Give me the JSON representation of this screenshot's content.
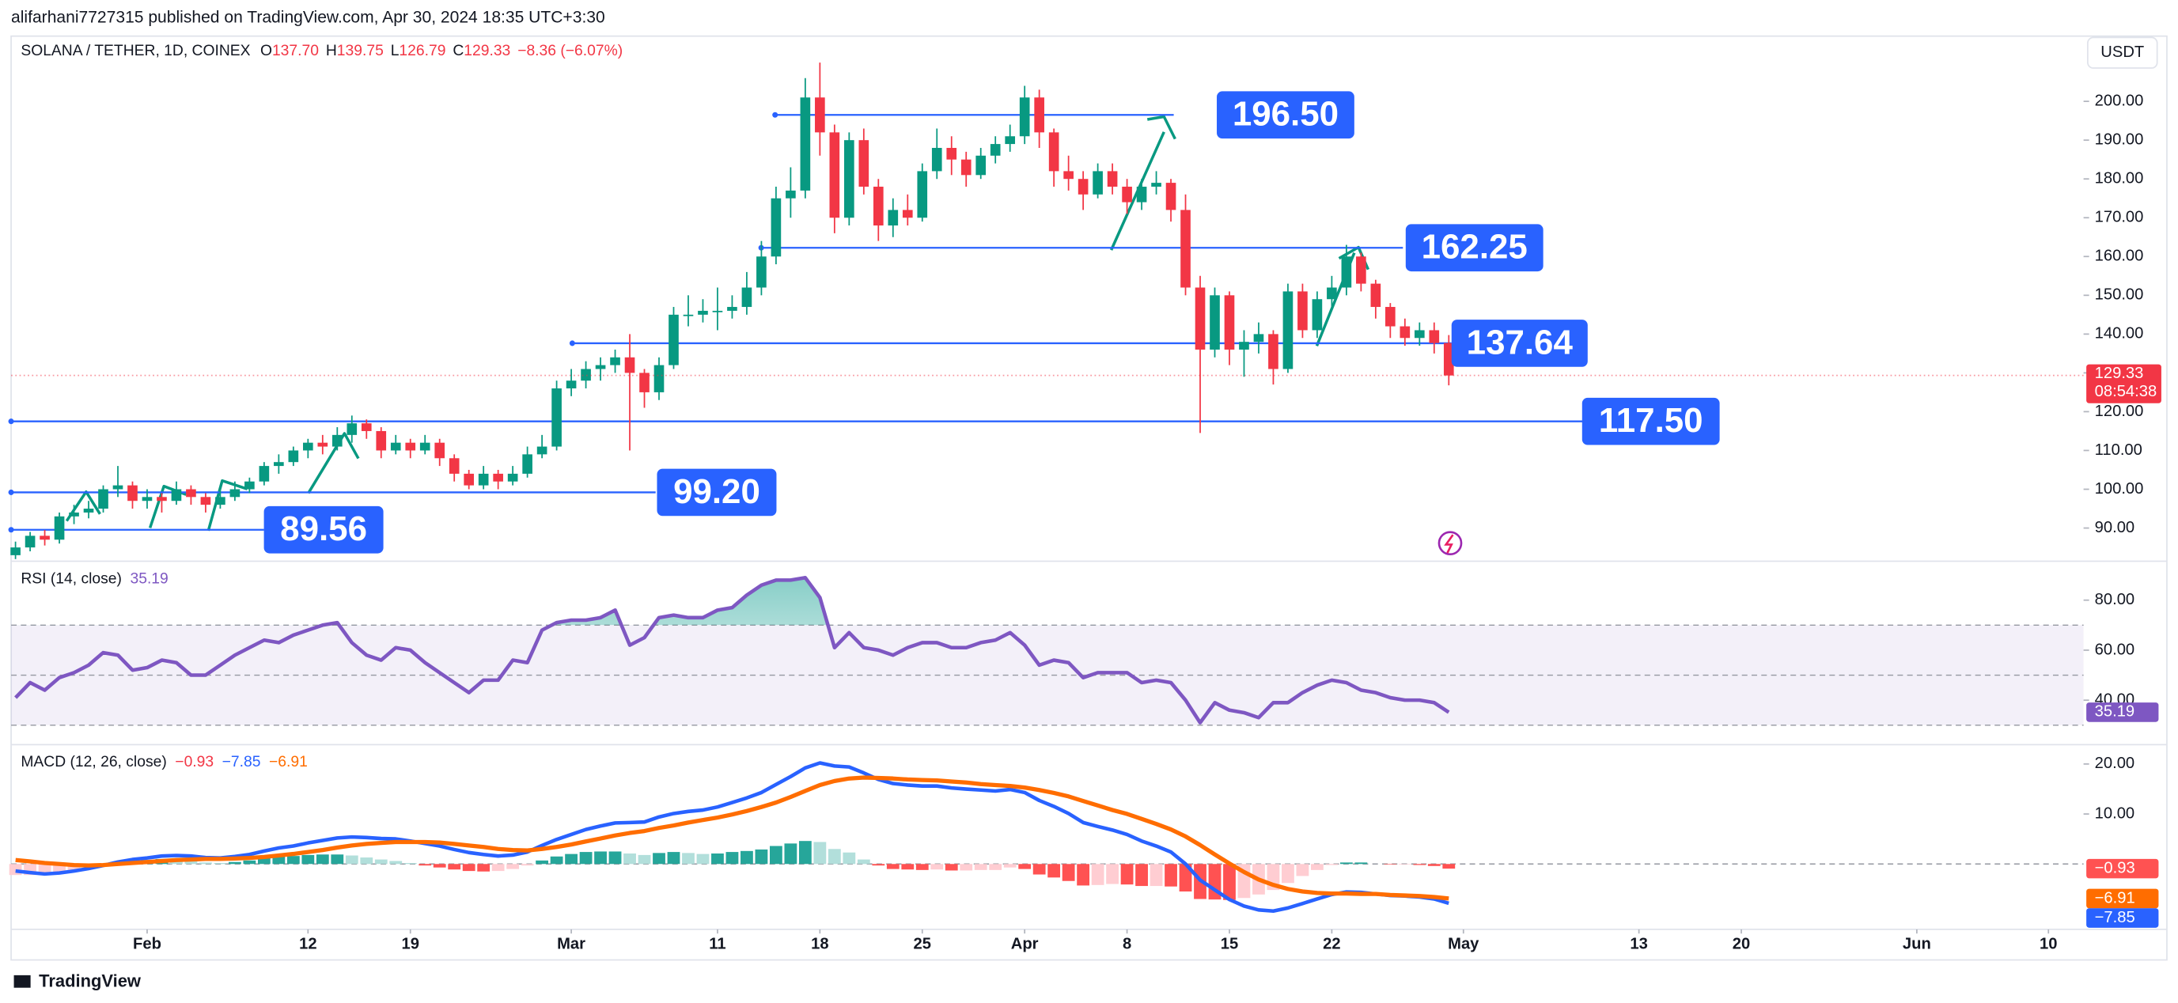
{
  "header": "alifarhani7727315 published on TradingView.com, Apr 30, 2024 18:35 UTC+3:30",
  "footer": "TradingView",
  "xaxis": {
    "xlim": [
      -0.3,
      141.4
    ],
    "xticks": [
      {
        "value": 9,
        "label": "Feb"
      },
      {
        "value": 20,
        "label": "12"
      },
      {
        "value": 27,
        "label": "19"
      },
      {
        "value": 38,
        "label": "Mar"
      },
      {
        "value": 48,
        "label": "11"
      },
      {
        "value": 55,
        "label": "18"
      },
      {
        "value": 62,
        "label": "25"
      },
      {
        "value": 69,
        "label": "Apr"
      },
      {
        "value": 76,
        "label": "8"
      },
      {
        "value": 83,
        "label": "15"
      },
      {
        "value": 90,
        "label": "22"
      },
      {
        "value": 99,
        "label": "May"
      },
      {
        "value": 111,
        "label": "13"
      },
      {
        "value": 118,
        "label": "20"
      },
      {
        "value": 130,
        "label": "Jun"
      },
      {
        "value": 139,
        "label": "10"
      }
    ]
  },
  "chart_data": [
    {
      "type": "candlestick",
      "title": "SOLANA / TETHER, 1D, COINEX",
      "currency": "USDT",
      "legend": [
        {
          "key": "O",
          "value": "137.70"
        },
        {
          "key": "H",
          "value": "139.75"
        },
        {
          "key": "L",
          "value": "126.79"
        },
        {
          "key": "C",
          "value": "129.33"
        }
      ],
      "change": "−8.36 (−6.07%)",
      "countdown": "08:54:38",
      "up_color": "#089981",
      "down_color": "#f23645",
      "ylim": [
        81.8,
        216.1
      ],
      "yticks": [
        {
          "value": 90,
          "label": "90.00"
        },
        {
          "value": 100,
          "label": "100.00"
        },
        {
          "value": 110,
          "label": "110.00"
        },
        {
          "value": 120,
          "label": "120.00"
        },
        {
          "value": 130,
          "label": "130.00"
        },
        {
          "value": 140,
          "label": "140.00"
        },
        {
          "value": 150,
          "label": "150.00"
        },
        {
          "value": 160,
          "label": "160.00"
        },
        {
          "value": 170,
          "label": "170.00"
        },
        {
          "value": 180,
          "label": "180.00"
        },
        {
          "value": 190,
          "label": "190.00"
        },
        {
          "value": 200,
          "label": "200.00"
        }
      ],
      "levels": [
        {
          "value": 196.5,
          "label": "196.50"
        },
        {
          "value": 162.25,
          "label": "162.25"
        },
        {
          "value": 137.64,
          "label": "137.64"
        },
        {
          "value": 117.5,
          "label": "117.50"
        },
        {
          "value": 99.2,
          "label": "99.20"
        },
        {
          "value": 89.56,
          "label": "89.56"
        }
      ],
      "level_color": "#2962ff",
      "candles": [
        [
          83,
          86.5,
          82,
          85
        ],
        [
          85,
          89,
          84,
          88
        ],
        [
          88,
          89.5,
          85.5,
          87
        ],
        [
          87,
          94,
          86,
          93
        ],
        [
          93,
          96,
          91,
          94
        ],
        [
          94,
          97,
          92.5,
          95
        ],
        [
          95,
          101,
          94,
          100
        ],
        [
          100,
          106,
          98,
          101
        ],
        [
          101,
          102,
          95,
          97
        ],
        [
          97,
          100,
          95,
          98
        ],
        [
          98,
          99,
          94,
          97
        ],
        [
          97,
          102,
          96,
          100
        ],
        [
          100,
          101,
          96,
          98
        ],
        [
          98,
          99,
          94,
          96
        ],
        [
          96,
          100,
          95,
          98
        ],
        [
          98,
          102,
          97,
          100
        ],
        [
          100,
          103,
          99,
          102
        ],
        [
          102,
          107,
          101,
          106
        ],
        [
          106,
          109,
          104,
          107
        ],
        [
          107,
          111,
          106,
          110
        ],
        [
          110,
          113,
          108,
          112
        ],
        [
          112,
          114,
          109,
          111
        ],
        [
          111,
          116,
          110,
          114
        ],
        [
          114,
          119,
          112,
          117
        ],
        [
          117,
          118,
          113,
          115
        ],
        [
          115,
          116,
          108,
          110
        ],
        [
          110,
          114,
          109,
          112
        ],
        [
          112,
          113,
          108,
          110
        ],
        [
          110,
          114,
          109,
          112
        ],
        [
          112,
          113,
          106,
          108
        ],
        [
          108,
          109,
          102,
          104
        ],
        [
          104,
          105,
          100,
          101
        ],
        [
          101,
          106,
          100,
          104
        ],
        [
          104,
          105,
          100,
          102
        ],
        [
          102,
          106,
          101,
          104
        ],
        [
          104,
          111,
          103,
          109
        ],
        [
          109,
          114,
          108,
          111
        ],
        [
          111,
          128,
          110,
          126
        ],
        [
          126,
          131,
          124,
          128
        ],
        [
          128,
          133,
          126,
          131
        ],
        [
          131,
          134,
          128,
          132
        ],
        [
          132,
          136,
          130,
          134
        ],
        [
          134,
          140,
          110,
          130
        ],
        [
          130,
          131,
          121,
          125
        ],
        [
          125,
          134,
          123,
          132
        ],
        [
          132,
          147,
          131,
          145
        ],
        [
          145,
          150,
          142,
          145
        ],
        [
          145,
          149,
          143,
          146
        ],
        [
          146,
          152,
          141,
          146
        ],
        [
          146,
          150,
          144,
          147
        ],
        [
          147,
          156,
          145,
          152
        ],
        [
          152,
          164,
          150,
          160
        ],
        [
          160,
          178,
          158,
          175
        ],
        [
          175,
          183,
          170,
          177
        ],
        [
          177,
          206,
          175,
          201
        ],
        [
          201,
          210,
          186,
          192
        ],
        [
          192,
          194,
          166,
          170
        ],
        [
          170,
          192,
          168,
          190
        ],
        [
          190,
          193,
          176,
          178
        ],
        [
          178,
          180,
          164,
          168
        ],
        [
          168,
          175,
          165,
          172
        ],
        [
          172,
          176,
          168,
          170
        ],
        [
          170,
          184,
          169,
          182
        ],
        [
          182,
          193,
          180,
          188
        ],
        [
          188,
          191,
          181,
          185
        ],
        [
          185,
          187,
          178,
          181
        ],
        [
          181,
          188,
          180,
          186
        ],
        [
          186,
          191,
          184,
          189
        ],
        [
          189,
          194,
          187,
          191
        ],
        [
          191,
          204,
          189,
          201
        ],
        [
          201,
          203,
          188,
          192
        ],
        [
          192,
          193,
          178,
          182
        ],
        [
          182,
          186,
          177,
          180
        ],
        [
          180,
          182,
          172,
          176
        ],
        [
          176,
          184,
          175,
          182
        ],
        [
          182,
          184,
          176,
          178
        ],
        [
          178,
          180,
          171,
          174
        ],
        [
          174,
          180,
          172,
          178
        ],
        [
          178,
          182,
          176,
          179
        ],
        [
          179,
          180,
          169,
          172
        ],
        [
          172,
          176,
          150,
          152
        ],
        [
          152,
          155,
          114.5,
          136
        ],
        [
          136,
          152,
          134,
          150
        ],
        [
          150,
          151,
          132,
          136
        ],
        [
          136,
          141,
          129,
          138
        ],
        [
          138,
          143,
          135,
          140
        ],
        [
          140,
          141,
          127,
          131
        ],
        [
          131,
          153,
          130,
          151
        ],
        [
          151,
          153,
          139,
          141
        ],
        [
          141,
          151,
          139,
          149
        ],
        [
          149,
          155,
          147,
          152
        ],
        [
          152,
          163,
          150,
          160
        ],
        [
          160,
          161,
          151,
          153
        ],
        [
          153,
          154,
          144,
          147
        ],
        [
          147,
          148,
          139,
          142
        ],
        [
          142,
          144,
          137,
          139
        ],
        [
          139,
          143,
          137,
          141
        ],
        [
          141,
          143,
          135,
          137.7
        ],
        [
          137.7,
          139.75,
          126.79,
          129.33
        ]
      ]
    },
    {
      "type": "line",
      "title": "RSI (14, close)",
      "color": "#7e57c2",
      "band": [
        30,
        70
      ],
      "midline": 50,
      "ylim": [
        22.8,
        95
      ],
      "yticks": [
        {
          "value": 40,
          "label": "40.00"
        },
        {
          "value": 60,
          "label": "60.00"
        },
        {
          "value": 80,
          "label": "80.00"
        }
      ],
      "values": [
        41,
        47,
        44,
        49,
        51,
        54,
        59,
        58,
        52,
        53,
        56,
        55,
        50,
        50,
        54,
        58,
        61,
        64,
        63,
        66,
        68,
        70,
        71,
        63,
        58,
        56,
        61,
        60,
        55,
        51,
        47,
        43,
        48,
        48,
        56,
        55,
        68,
        71,
        72,
        72,
        73,
        76,
        62,
        65,
        73,
        74,
        73,
        73,
        76,
        77,
        82,
        86,
        88,
        88,
        89,
        81,
        61,
        67,
        61,
        60,
        58,
        61,
        63,
        63,
        61,
        61,
        63,
        64,
        67,
        62,
        54,
        56,
        55,
        49,
        51,
        51,
        51,
        47,
        48,
        47,
        40,
        31,
        39,
        36,
        35,
        33,
        39,
        39,
        43,
        46,
        48,
        47,
        44,
        43,
        41,
        40,
        40,
        39,
        35.19
      ]
    },
    {
      "type": "macd",
      "title": "MACD (12, 26, close)",
      "ylim": [
        -12.8,
        23.6
      ],
      "yticks": [
        {
          "value": 10,
          "label": "10.00"
        },
        {
          "value": 20,
          "label": "20.00"
        }
      ],
      "hist_colors": {
        "rise_above": "#26a69a",
        "fall_above": "#b2dfdb",
        "fall_below": "#ff5252",
        "rise_below": "#ffcdd2"
      },
      "histogram": {
        "last_label": "−0.93",
        "color": "#ff5252",
        "values": [
          -2.2,
          -2.2,
          -2.2,
          -1.8,
          -1.2,
          -0.6,
          -0.1,
          0.4,
          0.7,
          0.8,
          1.0,
          0.9,
          0.7,
          0.3,
          0.2,
          0.4,
          0.7,
          1.2,
          1.5,
          1.6,
          1.8,
          1.9,
          1.9,
          1.7,
          1.3,
          0.9,
          0.6,
          0.2,
          -0.3,
          -0.7,
          -1.1,
          -1.4,
          -1.5,
          -1.4,
          -1.0,
          -0.3,
          0.7,
          1.5,
          2.0,
          2.4,
          2.5,
          2.5,
          2.1,
          1.8,
          2.2,
          2.4,
          2.2,
          2.0,
          2.1,
          2.4,
          2.6,
          2.9,
          3.6,
          4.1,
          4.6,
          4.4,
          3.0,
          2.3,
          0.9,
          -0.3,
          -1.0,
          -1.1,
          -1.2,
          -1.1,
          -1.3,
          -1.3,
          -1.2,
          -1.2,
          -0.7,
          -1.0,
          -2.1,
          -2.7,
          -3.4,
          -4.3,
          -4.2,
          -4.0,
          -4.1,
          -4.4,
          -4.4,
          -4.5,
          -5.5,
          -7.0,
          -7.1,
          -7.2,
          -6.8,
          -6.1,
          -5.2,
          -3.8,
          -2.4,
          -1.2,
          -0.2,
          0.3,
          0.3,
          0.0,
          -0.1,
          -0.1,
          -0.2,
          -0.4,
          -0.93
        ]
      },
      "macd": {
        "last_label": "−7.85",
        "color": "#2962ff",
        "values": [
          -1.4,
          -1.7,
          -2.0,
          -1.8,
          -1.4,
          -0.9,
          -0.3,
          0.4,
          0.9,
          1.2,
          1.6,
          1.7,
          1.6,
          1.3,
          1.2,
          1.5,
          1.9,
          2.6,
          3.2,
          3.6,
          4.2,
          4.7,
          5.2,
          5.4,
          5.3,
          5.1,
          5.0,
          4.6,
          4.1,
          3.6,
          2.9,
          2.3,
          1.9,
          1.6,
          1.8,
          2.4,
          3.7,
          4.9,
          5.9,
          6.9,
          7.6,
          8.2,
          8.3,
          8.4,
          9.4,
          10.1,
          10.5,
          10.8,
          11.4,
          12.3,
          13.2,
          14.3,
          15.9,
          17.5,
          19.2,
          20.2,
          19.6,
          19.4,
          18.2,
          16.9,
          16.1,
          15.8,
          15.6,
          15.6,
          15.2,
          15.0,
          14.8,
          14.6,
          14.9,
          14.3,
          12.7,
          11.5,
          10.1,
          8.3,
          7.5,
          6.8,
          5.9,
          4.6,
          3.6,
          2.4,
          0.0,
          -3.2,
          -5.2,
          -7.1,
          -8.4,
          -9.2,
          -9.4,
          -8.8,
          -7.9,
          -7.0,
          -6.1,
          -5.6,
          -5.7,
          -6.0,
          -6.3,
          -6.4,
          -6.6,
          -7.0,
          -7.85
        ]
      },
      "signal": {
        "last_label": "−6.91",
        "color": "#ff6d00",
        "values": [
          0.8,
          0.5,
          0.2,
          0.0,
          -0.2,
          -0.3,
          -0.2,
          0.0,
          0.2,
          0.4,
          0.6,
          0.8,
          0.9,
          1.0,
          1.0,
          1.1,
          1.2,
          1.4,
          1.7,
          2.0,
          2.4,
          2.8,
          3.3,
          3.7,
          4.0,
          4.2,
          4.4,
          4.4,
          4.4,
          4.3,
          4.0,
          3.7,
          3.4,
          3.0,
          2.8,
          2.7,
          3.0,
          3.4,
          3.9,
          4.5,
          5.1,
          5.7,
          6.2,
          6.6,
          7.2,
          7.7,
          8.3,
          8.8,
          9.3,
          9.9,
          10.6,
          11.4,
          12.3,
          13.4,
          14.6,
          15.8,
          16.6,
          17.1,
          17.3,
          17.2,
          17.1,
          16.9,
          16.8,
          16.7,
          16.5,
          16.3,
          16.0,
          15.8,
          15.6,
          15.3,
          14.8,
          14.2,
          13.5,
          12.6,
          11.7,
          10.8,
          10.0,
          9.0,
          8.0,
          6.9,
          5.5,
          3.8,
          1.9,
          0.1,
          -1.6,
          -3.1,
          -4.2,
          -5.0,
          -5.5,
          -5.8,
          -5.9,
          -5.9,
          -6.0,
          -6.0,
          -6.2,
          -6.3,
          -6.4,
          -6.6,
          -6.91
        ]
      }
    }
  ]
}
